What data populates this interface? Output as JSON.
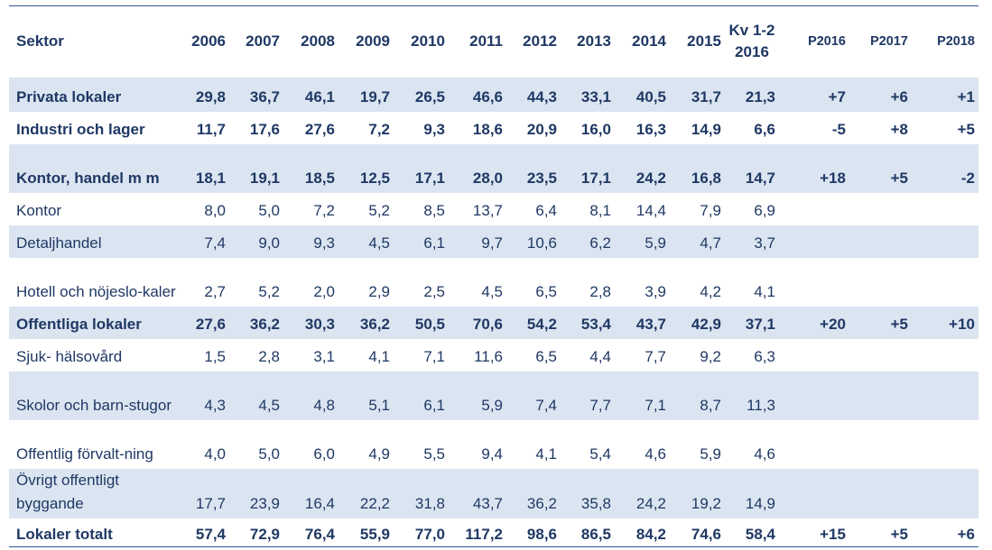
{
  "headers": [
    "Sektor",
    "2006",
    "2007",
    "2008",
    "2009",
    "2010",
    "2011",
    "2012",
    "2013",
    "2014",
    "2015",
    "Kv 1-2 2016",
    "P2016",
    "P2017",
    "P2018"
  ],
  "rows": [
    {
      "label": "Privata lokaler",
      "values": [
        "29,8",
        "36,7",
        "46,1",
        "19,7",
        "26,5",
        "46,6",
        "44,3",
        "33,1",
        "40,5",
        "31,7",
        "21,3",
        "+7",
        "+6",
        "+1"
      ],
      "bold": true,
      "band": true
    },
    {
      "label": "Industri och lager",
      "values": [
        "11,7",
        "17,6",
        "27,6",
        "7,2",
        "9,3",
        "18,6",
        "20,9",
        "16,0",
        "16,3",
        "14,9",
        "6,6",
        "-5",
        "+8",
        "+5"
      ],
      "bold": true,
      "band": false
    },
    {
      "label": "Kontor, handel m m",
      "values": [
        "18,1",
        "19,1",
        "18,5",
        "12,5",
        "17,1",
        "28,0",
        "23,5",
        "17,1",
        "24,2",
        "16,8",
        "14,7",
        "+18",
        "+5",
        "-2"
      ],
      "bold": true,
      "band": true
    },
    {
      "label": "Kontor",
      "values": [
        "8,0",
        "5,0",
        "7,2",
        "5,2",
        "8,5",
        "13,7",
        "6,4",
        "8,1",
        "14,4",
        "7,9",
        "6,9",
        "",
        "",
        ""
      ],
      "bold": false,
      "band": false
    },
    {
      "label": "Detaljhandel",
      "values": [
        "7,4",
        "9,0",
        "9,3",
        "4,5",
        "6,1",
        "9,7",
        "10,6",
        "6,2",
        "5,9",
        "4,7",
        "3,7",
        "",
        "",
        ""
      ],
      "bold": false,
      "band": true
    },
    {
      "label": "Hotell och nöjeslo-kaler",
      "values": [
        "2,7",
        "5,2",
        "2,0",
        "2,9",
        "2,5",
        "4,5",
        "6,5",
        "2,8",
        "3,9",
        "4,2",
        "4,1",
        "",
        "",
        ""
      ],
      "bold": false,
      "band": false
    },
    {
      "label": "Offentliga lokaler",
      "values": [
        "27,6",
        "36,2",
        "30,3",
        "36,2",
        "50,5",
        "70,6",
        "54,2",
        "53,4",
        "43,7",
        "42,9",
        "37,1",
        "+20",
        "+5",
        "+10"
      ],
      "bold": true,
      "band": true
    },
    {
      "label": "Sjuk- hälsovård",
      "values": [
        "1,5",
        "2,8",
        "3,1",
        "4,1",
        "7,1",
        "11,6",
        "6,5",
        "4,4",
        "7,7",
        "9,2",
        "6,3",
        "",
        "",
        ""
      ],
      "bold": false,
      "band": false
    },
    {
      "label": "Skolor och barn-stugor",
      "values": [
        "4,3",
        "4,5",
        "4,8",
        "5,1",
        "6,1",
        "5,9",
        "7,4",
        "7,7",
        "7,1",
        "8,7",
        "11,3",
        "",
        "",
        ""
      ],
      "bold": false,
      "band": true
    },
    {
      "label": "Offentlig förvalt-ning",
      "values": [
        "4,0",
        "5,0",
        "6,0",
        "4,9",
        "5,5",
        "9,4",
        "4,1",
        "5,4",
        "4,6",
        "5,9",
        "4,6",
        "",
        "",
        ""
      ],
      "bold": false,
      "band": false
    },
    {
      "label": "Övrigt offentligt byggande",
      "values": [
        "17,7",
        "23,9",
        "16,4",
        "22,2",
        "31,8",
        "43,7",
        "36,2",
        "35,8",
        "24,2",
        "19,2",
        "14,9",
        "",
        "",
        ""
      ],
      "bold": false,
      "band": true
    },
    {
      "label": "Lokaler totalt",
      "values": [
        "57,4",
        "72,9",
        "76,4",
        "55,9",
        "77,0",
        "117,2",
        "98,6",
        "86,5",
        "84,2",
        "74,6",
        "58,4",
        "+15",
        "+5",
        "+6"
      ],
      "bold": true,
      "band": false
    }
  ]
}
